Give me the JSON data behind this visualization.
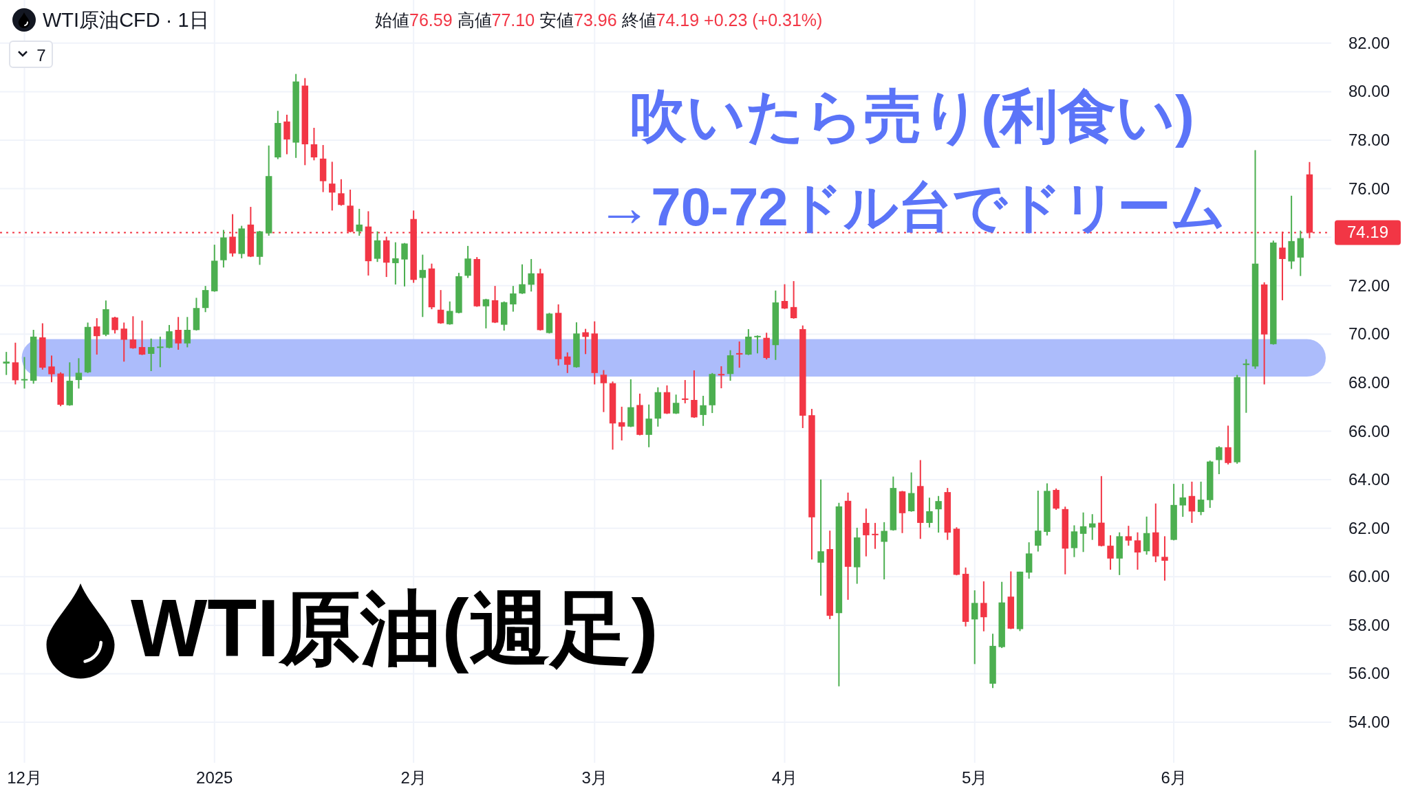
{
  "chart_data": {
    "type": "candlestick",
    "title": "WTI原油CFD · 1日",
    "subtitle": "始値76.59 高値77.10 安値73.96 終値74.19 +0.23 (+0.31%)",
    "annotations": [
      "吹いたら売り(利食い)",
      "→70-72ドル台でドリーム",
      "WTI原油(週足)",
      "7"
    ],
    "categories": [
      null,
      null,
      "12月",
      null,
      null,
      null,
      null,
      null,
      null,
      null,
      null,
      null,
      null,
      null,
      null,
      null,
      null,
      null,
      null,
      null,
      null,
      null,
      null,
      "2025",
      null,
      null,
      null,
      null,
      null,
      null,
      null,
      null,
      null,
      null,
      null,
      null,
      null,
      null,
      null,
      null,
      null,
      null,
      null,
      null,
      null,
      "2月",
      null,
      null,
      null,
      null,
      null,
      null,
      null,
      null,
      null,
      null,
      null,
      null,
      null,
      null,
      null,
      null,
      null,
      null,
      null,
      "3月",
      null,
      null,
      null,
      null,
      null,
      null,
      null,
      null,
      null,
      null,
      null,
      null,
      null,
      null,
      null,
      null,
      null,
      null,
      null,
      null,
      "4月",
      null,
      null,
      null,
      null,
      null,
      null,
      null,
      null,
      null,
      null,
      null,
      null,
      null,
      null,
      null,
      null,
      null,
      null,
      null,
      null,
      "5月",
      null,
      null,
      null,
      null,
      null,
      null,
      null,
      null,
      null,
      null,
      null,
      null,
      null,
      null,
      null,
      null,
      null,
      null,
      null,
      null,
      null,
      "6月",
      null,
      null,
      null,
      null,
      null,
      null,
      null,
      null,
      null,
      null,
      null,
      null,
      null,
      null,
      null
    ],
    "ohlc": [
      [
        68.79,
        69.27,
        68.32,
        68.87
      ],
      [
        68.84,
        69.65,
        67.93,
        68.1
      ],
      [
        68.11,
        69.06,
        67.76,
        68.15
      ],
      [
        68.08,
        70.18,
        67.96,
        69.9
      ],
      [
        69.87,
        70.45,
        68.54,
        68.62
      ],
      [
        68.67,
        69.12,
        68.02,
        68.35
      ],
      [
        68.38,
        68.43,
        67.03,
        67.09
      ],
      [
        67.07,
        68.84,
        67.05,
        68.08
      ],
      [
        68.11,
        69.01,
        67.76,
        68.41
      ],
      [
        68.43,
        70.48,
        68.4,
        70.3
      ],
      [
        70.32,
        70.66,
        69.16,
        69.92
      ],
      [
        69.98,
        71.39,
        69.92,
        71.03
      ],
      [
        70.69,
        70.72,
        70.03,
        70.17
      ],
      [
        70.23,
        70.48,
        68.87,
        69.77
      ],
      [
        69.78,
        70.74,
        69.4,
        69.42
      ],
      [
        69.47,
        70.56,
        69.14,
        69.16
      ],
      [
        69.19,
        69.82,
        68.48,
        69.47
      ],
      [
        69.44,
        69.9,
        68.64,
        69.49
      ],
      [
        69.44,
        70.38,
        69.42,
        70.12
      ],
      [
        70.18,
        70.71,
        69.36,
        69.62
      ],
      [
        69.62,
        70.71,
        69.46,
        70.18
      ],
      [
        70.17,
        71.5,
        70.15,
        71.08
      ],
      [
        71.08,
        71.99,
        70.91,
        71.82
      ],
      [
        71.77,
        73.69,
        71.75,
        73.03
      ],
      [
        73.05,
        74.3,
        72.75,
        73.99
      ],
      [
        74.02,
        74.95,
        73.2,
        73.33
      ],
      [
        73.31,
        74.47,
        73.13,
        74.36
      ],
      [
        74.52,
        75.25,
        73.18,
        73.2
      ],
      [
        73.19,
        74.26,
        72.86,
        74.24
      ],
      [
        74.16,
        77.78,
        74.06,
        76.52
      ],
      [
        77.29,
        79.21,
        77.22,
        78.71
      ],
      [
        78.77,
        79.05,
        77.42,
        78.03
      ],
      [
        77.9,
        80.73,
        77.27,
        80.42
      ],
      [
        80.25,
        80.56,
        76.97,
        77.83
      ],
      [
        77.83,
        78.51,
        77.17,
        77.29
      ],
      [
        77.24,
        77.8,
        75.86,
        76.31
      ],
      [
        76.21,
        77.11,
        75.1,
        75.84
      ],
      [
        75.81,
        76.39,
        75.3,
        75.33
      ],
      [
        75.3,
        75.96,
        74.2,
        74.22
      ],
      [
        74.24,
        75.17,
        74.06,
        74.52
      ],
      [
        74.44,
        75.07,
        72.42,
        73.01
      ],
      [
        73.11,
        74.24,
        72.98,
        73.87
      ],
      [
        73.87,
        74.02,
        72.36,
        72.95
      ],
      [
        72.93,
        73.79,
        72.05,
        73.13
      ],
      [
        73.08,
        73.76,
        71.97,
        73.74
      ],
      [
        74.75,
        75.1,
        72.12,
        72.24
      ],
      [
        72.32,
        73.28,
        70.71,
        72.65
      ],
      [
        72.71,
        72.91,
        71.03,
        71.11
      ],
      [
        71.01,
        71.82,
        70.43,
        70.45
      ],
      [
        70.41,
        71.35,
        70.39,
        70.96
      ],
      [
        70.88,
        72.53,
        70.86,
        72.39
      ],
      [
        72.41,
        73.64,
        72.32,
        73.12
      ],
      [
        73.1,
        73.18,
        71.13,
        71.15
      ],
      [
        71.15,
        71.46,
        70.24,
        71.44
      ],
      [
        71.4,
        71.99,
        70.46,
        70.48
      ],
      [
        70.39,
        71.35,
        70.15,
        71.32
      ],
      [
        71.23,
        71.99,
        70.93,
        71.68
      ],
      [
        71.68,
        72.88,
        71.66,
        72.06
      ],
      [
        72.04,
        73.1,
        71.76,
        72.51
      ],
      [
        72.51,
        72.7,
        70.15,
        70.17
      ],
      [
        70.05,
        70.88,
        70.03,
        70.85
      ],
      [
        70.88,
        71.23,
        68.71,
        68.97
      ],
      [
        69.08,
        69.25,
        68.4,
        68.74
      ],
      [
        68.64,
        70.49,
        68.62,
        70.03
      ],
      [
        70.08,
        70.22,
        69.18,
        69.89
      ],
      [
        70.03,
        70.53,
        67.93,
        68.4
      ],
      [
        68.33,
        68.52,
        66.79,
        67.98
      ],
      [
        67.98,
        68.05,
        65.24,
        66.32
      ],
      [
        66.37,
        67.01,
        65.62,
        66.19
      ],
      [
        66.19,
        68.14,
        66.17,
        66.99
      ],
      [
        67.08,
        67.55,
        65.83,
        65.85
      ],
      [
        65.85,
        67.1,
        65.34,
        66.52
      ],
      [
        66.52,
        67.81,
        66.19,
        67.61
      ],
      [
        67.61,
        67.89,
        66.71,
        66.73
      ],
      [
        66.73,
        67.51,
        66.71,
        67.17
      ],
      [
        67.35,
        68.11,
        67.15,
        67.32
      ],
      [
        67.29,
        68.51,
        66.55,
        66.57
      ],
      [
        66.67,
        67.46,
        66.22,
        67.07
      ],
      [
        67.07,
        68.4,
        66.75,
        68.36
      ],
      [
        68.36,
        68.68,
        67.77,
        68.32
      ],
      [
        68.36,
        69.34,
        68.08,
        69.13
      ],
      [
        69.22,
        69.7,
        68.62,
        69.19
      ],
      [
        69.16,
        70.21,
        69.14,
        69.9
      ],
      [
        69.89,
        69.95,
        69.21,
        69.93
      ],
      [
        69.85,
        70.06,
        68.96,
        69.02
      ],
      [
        69.55,
        71.8,
        68.94,
        71.31
      ],
      [
        71.37,
        72.06,
        71.04,
        71.06
      ],
      [
        71.12,
        72.19,
        70.64,
        70.66
      ],
      [
        70.21,
        70.36,
        66.13,
        66.64
      ],
      [
        66.66,
        66.92,
        60.71,
        62.45
      ],
      [
        60.58,
        64.01,
        59.22,
        61.05
      ],
      [
        61.14,
        61.9,
        58.25,
        58.39
      ],
      [
        58.5,
        63.05,
        55.48,
        62.9
      ],
      [
        63.13,
        63.47,
        59.05,
        60.41
      ],
      [
        60.39,
        62.02,
        59.71,
        61.62
      ],
      [
        62.22,
        62.81,
        60.84,
        61.71
      ],
      [
        61.77,
        62.22,
        61.15,
        61.73
      ],
      [
        61.44,
        62.25,
        59.89,
        61.89
      ],
      [
        61.92,
        64.13,
        61.9,
        63.66
      ],
      [
        63.52,
        63.54,
        61.8,
        62.62
      ],
      [
        62.7,
        64.3,
        62.68,
        63.45
      ],
      [
        63.74,
        64.81,
        61.56,
        62.22
      ],
      [
        62.22,
        63.26,
        62.03,
        62.7
      ],
      [
        62.78,
        63.33,
        61.82,
        63.12
      ],
      [
        63.49,
        63.66,
        61.52,
        61.82
      ],
      [
        61.98,
        62.04,
        60.06,
        60.08
      ],
      [
        60.12,
        60.38,
        57.95,
        58.14
      ],
      [
        58.24,
        59.44,
        56.4,
        58.92
      ],
      [
        58.92,
        59.81,
        57.75,
        58.33
      ],
      [
        55.59,
        57.65,
        55.41,
        57.15
      ],
      [
        57.1,
        59.79,
        57.06,
        58.94
      ],
      [
        59.18,
        60.22,
        57.84,
        57.86
      ],
      [
        57.84,
        60.21,
        57.76,
        60.21
      ],
      [
        60.17,
        61.42,
        59.92,
        60.96
      ],
      [
        61.28,
        63.55,
        61.04,
        61.9
      ],
      [
        61.85,
        63.85,
        61.7,
        63.54
      ],
      [
        63.58,
        63.64,
        62.76,
        62.81
      ],
      [
        62.79,
        62.89,
        60.1,
        61.16
      ],
      [
        61.18,
        62.12,
        60.81,
        61.87
      ],
      [
        61.77,
        62.65,
        61.02,
        62.08
      ],
      [
        62.03,
        62.58,
        61.52,
        62.2
      ],
      [
        62.23,
        64.15,
        61.25,
        61.27
      ],
      [
        61.28,
        61.71,
        60.29,
        60.75
      ],
      [
        60.75,
        61.83,
        60.07,
        61.67
      ],
      [
        61.67,
        62.1,
        61.28,
        61.49
      ],
      [
        61.5,
        61.83,
        60.29,
        61.0
      ],
      [
        61.05,
        62.48,
        60.91,
        61.8
      ],
      [
        61.83,
        63.02,
        60.6,
        60.84
      ],
      [
        60.82,
        61.67,
        59.84,
        60.66
      ],
      [
        61.52,
        63.83,
        61.5,
        62.96
      ],
      [
        62.94,
        63.83,
        62.47,
        63.27
      ],
      [
        63.33,
        63.92,
        62.22,
        62.69
      ],
      [
        62.67,
        63.92,
        62.54,
        63.18
      ],
      [
        63.16,
        64.79,
        62.84,
        64.75
      ],
      [
        64.81,
        65.38,
        64.23,
        65.34
      ],
      [
        65.34,
        66.23,
        64.63,
        64.69
      ],
      [
        64.72,
        68.32,
        64.66,
        68.23
      ],
      [
        68.73,
        68.97,
        66.76,
        68.79
      ],
      [
        68.67,
        77.59,
        68.57,
        72.91
      ],
      [
        72.05,
        72.14,
        67.93,
        69.99
      ],
      [
        69.59,
        73.86,
        69.57,
        73.78
      ],
      [
        73.57,
        74.23,
        71.4,
        73.1
      ],
      [
        73.0,
        75.71,
        72.69,
        73.84
      ],
      [
        73.16,
        74.27,
        72.4,
        73.96
      ],
      [
        76.59,
        77.1,
        73.96,
        74.19
      ]
    ],
    "ylim": [
      52.33,
      83.78
    ],
    "yticks": [
      {
        "value": 54,
        "label": "54.00"
      },
      {
        "value": 56,
        "label": "56.00"
      },
      {
        "value": 58,
        "label": "58.00"
      },
      {
        "value": 60,
        "label": "60.00"
      },
      {
        "value": 62,
        "label": "62.00"
      },
      {
        "value": 64,
        "label": "64.00"
      },
      {
        "value": 66,
        "label": "66.00"
      },
      {
        "value": 68,
        "label": "68.00"
      },
      {
        "value": 70,
        "label": "70.00"
      },
      {
        "value": 72,
        "label": "72.00"
      },
      {
        "value": 74,
        "label": null
      },
      {
        "value": 76,
        "label": "76.00"
      },
      {
        "value": 78,
        "label": "78.00"
      },
      {
        "value": 80,
        "label": "80.00"
      },
      {
        "value": 82,
        "label": "82.00"
      }
    ],
    "ref_lines": [
      {
        "axis": "y",
        "value": 74.19,
        "label": "74.19",
        "color": "#f23645",
        "line_style": "dotted"
      }
    ],
    "bands": [
      {
        "axis": "y",
        "from": 68.25,
        "to": 69.8,
        "color": "#a8b8fb"
      }
    ],
    "grid": true
  }
}
